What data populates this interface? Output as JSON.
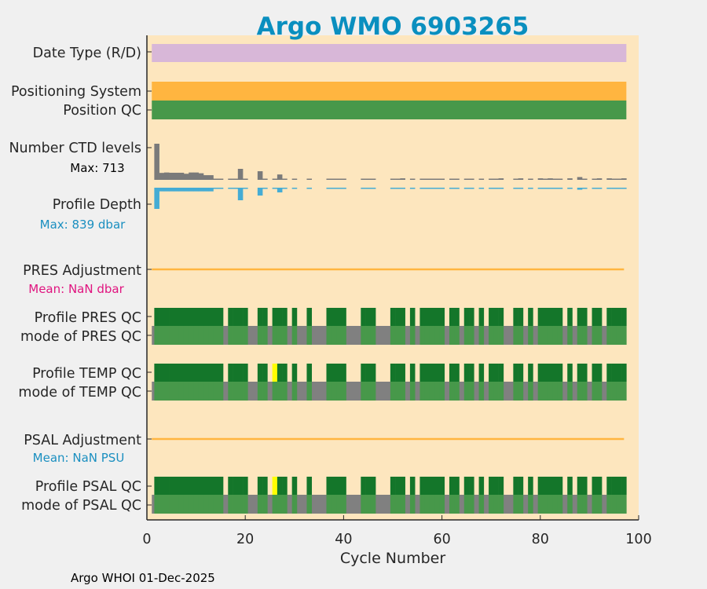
{
  "chart_data": {
    "type": "bar",
    "title": "Argo WMO 6903265",
    "xlabel": "Cycle Number",
    "xlim": [
      0,
      100
    ],
    "xticks": [
      "0",
      "20",
      "40",
      "60",
      "80",
      "100"
    ],
    "footer": "Argo WHOI 01-Dec-2025",
    "row_labels": {
      "date_type": "Date Type (R/D)",
      "positioning_system": "Positioning System",
      "position_qc": "Position QC",
      "ctd_levels": "Number CTD levels",
      "ctd_max": "Max: 713",
      "profile_depth": "Profile Depth",
      "depth_max": "Max:  839 dbar",
      "pres_adj": "PRES Adjustment",
      "pres_adj_mean": "Mean:  NaN dbar",
      "pres_qc": "Profile PRES QC",
      "pres_mode": "mode of PRES QC",
      "temp_qc": "Profile TEMP QC",
      "temp_mode": "mode of TEMP QC",
      "psal_adj": "PSAL Adjustment",
      "psal_adj_mean": "Mean:  NaN PSU",
      "psal_qc": "Profile PSAL QC",
      "psal_mode": "mode of PSAL QC"
    },
    "cycle_range": [
      1,
      97
    ],
    "qc_cycles": [
      2,
      3,
      4,
      5,
      6,
      7,
      8,
      9,
      10,
      11,
      12,
      13,
      14,
      15,
      17,
      18,
      19,
      20,
      23,
      24,
      26,
      27,
      28,
      30,
      33,
      37,
      38,
      39,
      40,
      44,
      45,
      46,
      50,
      51,
      52,
      54,
      56,
      57,
      58,
      59,
      60,
      62,
      63,
      65,
      66,
      68,
      70,
      71,
      72,
      75,
      76,
      78,
      80,
      81,
      82,
      83,
      84,
      86,
      88,
      89,
      91,
      92,
      94,
      95,
      96,
      97
    ],
    "temp_flag3_cycles": [
      26
    ],
    "psal_flag3_cycles": [
      26
    ],
    "ctd_levels": {
      "2": 713,
      "3": 137,
      "4": 145,
      "5": 140,
      "6": 140,
      "7": 140,
      "8": 120,
      "9": 145,
      "10": 145,
      "11": 130,
      "12": 92,
      "13": 92,
      "19": 217,
      "23": 170,
      "27": 106,
      "52": 30,
      "72": 30,
      "76": 30,
      "80": 30,
      "82": 30,
      "86": 30,
      "88": 55,
      "92": 30,
      "94": 30,
      "97": 30
    },
    "ctd_levels_default": 10,
    "profile_depth": {
      "2": 839,
      "3": 145,
      "4": 145,
      "5": 145,
      "6": 145,
      "7": 145,
      "8": 145,
      "9": 145,
      "10": 145,
      "11": 145,
      "12": 145,
      "13": 145,
      "19": 497,
      "23": 311,
      "27": 186,
      "52": 30,
      "72": 30,
      "76": 30,
      "80": 30,
      "82": 30,
      "86": 30,
      "88": 80,
      "92": 30,
      "94": 30,
      "97": 30
    },
    "profile_depth_default": 10,
    "colors": {
      "background": "#f0f0f0",
      "plot_bg": "#fde6be",
      "title": "#0a8fbf",
      "date_type": "#d8b7d8",
      "positioning": "#ffb540",
      "qc_good": "#47984a",
      "qc_profile_a": "#14762a",
      "qc_missing": "#808080",
      "qc_flag3": "#ffff00",
      "ctd": "#7a7a7a",
      "depth": "#45acd4",
      "adj_line": "#ffb540",
      "pres_mean": "#e0147f",
      "psal_mean": "#1a8fc0"
    }
  }
}
